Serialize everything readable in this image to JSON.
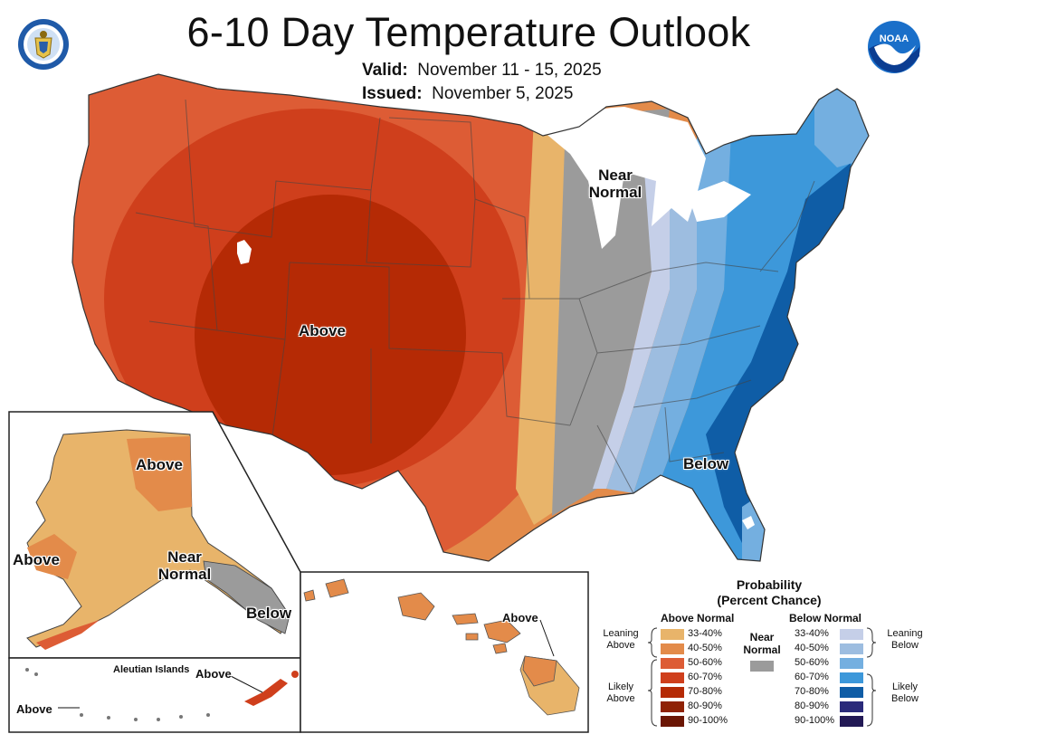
{
  "title": "6-10 Day Temperature Outlook",
  "valid_label": "Valid:",
  "valid_dates": "November 11 - 15, 2025",
  "issued_label": "Issued:",
  "issued_date": "November 5, 2025",
  "map_labels": {
    "conus_above": "Above",
    "conus_near": "Near Normal",
    "conus_below": "Below",
    "alaska_above_ne": "Above",
    "alaska_above_w": "Above",
    "alaska_near": "Near Normal",
    "alaska_below": "Below",
    "aleutian_title": "Aleutian Islands",
    "aleutian_above_e": "Above",
    "aleutian_above_w": "Above",
    "hawaii_above": "Above"
  },
  "legend": {
    "title_line1": "Probability",
    "title_line2": "(Percent Chance)",
    "above_header": "Above Normal",
    "below_header": "Below Normal",
    "near_header": "Near Normal",
    "near_color": "#9b9b9b",
    "leaning_above": "Leaning Above",
    "likely_above": "Likely Above",
    "leaning_below": "Leaning Below",
    "likely_below": "Likely Below",
    "above_bins": [
      {
        "label": "33-40%",
        "color": "#e8b46a"
      },
      {
        "label": "40-50%",
        "color": "#e38b4a"
      },
      {
        "label": "50-60%",
        "color": "#dd5c35"
      },
      {
        "label": "60-70%",
        "color": "#cf3f1c"
      },
      {
        "label": "70-80%",
        "color": "#b52a05"
      },
      {
        "label": "80-90%",
        "color": "#8f2205"
      },
      {
        "label": "90-100%",
        "color": "#6b1604"
      }
    ],
    "below_bins": [
      {
        "label": "33-40%",
        "color": "#c5cfe8"
      },
      {
        "label": "40-50%",
        "color": "#9dbde0"
      },
      {
        "label": "50-60%",
        "color": "#74afe0"
      },
      {
        "label": "60-70%",
        "color": "#3d98da"
      },
      {
        "label": "70-80%",
        "color": "#0f5da6"
      },
      {
        "label": "80-90%",
        "color": "#2a2a7a"
      },
      {
        "label": "90-100%",
        "color": "#221955"
      }
    ]
  }
}
